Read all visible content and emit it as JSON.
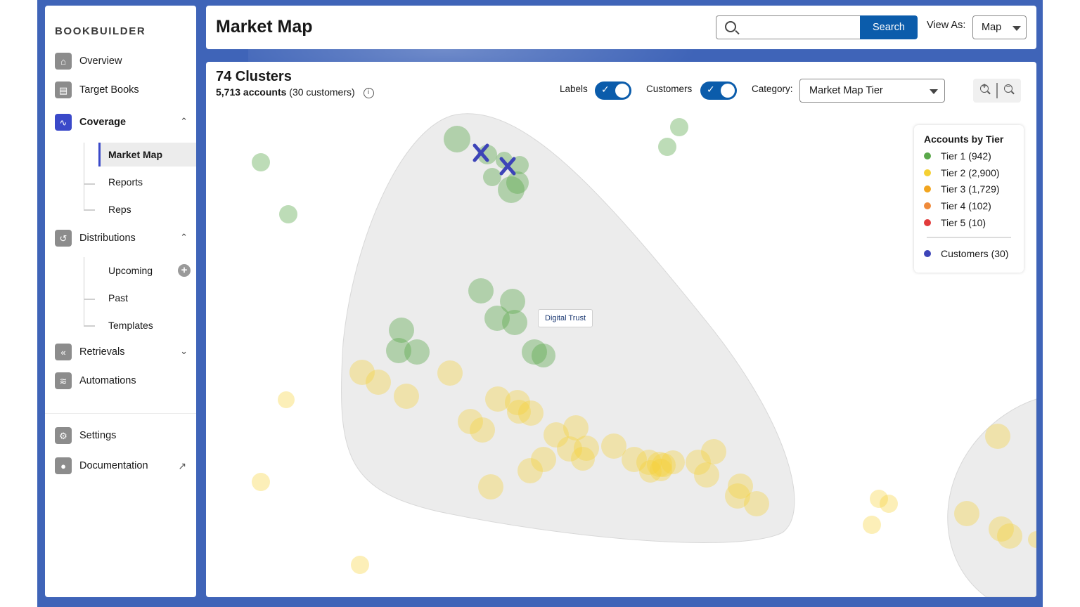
{
  "sidebar": {
    "brand": "BOOKBUILDER",
    "items": {
      "overview": "Overview",
      "target_books": "Target Books",
      "coverage": "Coverage",
      "market_map": "Market Map",
      "reports": "Reports",
      "reps": "Reps",
      "distributions": "Distributions",
      "upcoming": "Upcoming",
      "past": "Past",
      "templates": "Templates",
      "retrievals": "Retrievals",
      "automations": "Automations",
      "settings": "Settings",
      "documentation": "Documentation"
    },
    "icons": {
      "overview": "home-icon",
      "target_books": "book-icon",
      "coverage": "pulse-icon",
      "distributions": "share-icon",
      "retrievals": "rewind-icon",
      "automations": "flow-icon",
      "settings": "gear-icon",
      "documentation": "lightbulb-icon"
    },
    "active_color": "#3a49c9"
  },
  "header": {
    "title": "Market Map",
    "search_placeholder": "",
    "search_button": "Search",
    "view_as_label": "View As:",
    "view_as_value": "Map",
    "accent": "#0b5cab"
  },
  "main": {
    "clusters_title": "74 Clusters",
    "accounts_count": "5,713 accounts",
    "customers_count": "(30 customers)",
    "labels_toggle_label": "Labels",
    "labels_toggle_on": true,
    "customers_toggle_label": "Customers",
    "customers_toggle_on": true,
    "category_label": "Category:",
    "category_value": "Market Map Tier",
    "cluster_label": "Digital Trust"
  },
  "legend": {
    "title": "Accounts by Tier",
    "tiers": [
      {
        "label": "Tier 1 (942)",
        "color": "#5aa84a"
      },
      {
        "label": "Tier 2 (2,900)",
        "color": "#f5d033"
      },
      {
        "label": "Tier 3 (1,729)",
        "color": "#f2a51f"
      },
      {
        "label": "Tier 4 (102)",
        "color": "#ef8a3a"
      },
      {
        "label": "Tier 5 (10)",
        "color": "#e23b3b"
      }
    ],
    "customers": {
      "label": "Customers (30)",
      "color": "#3d44b8"
    }
  }
}
